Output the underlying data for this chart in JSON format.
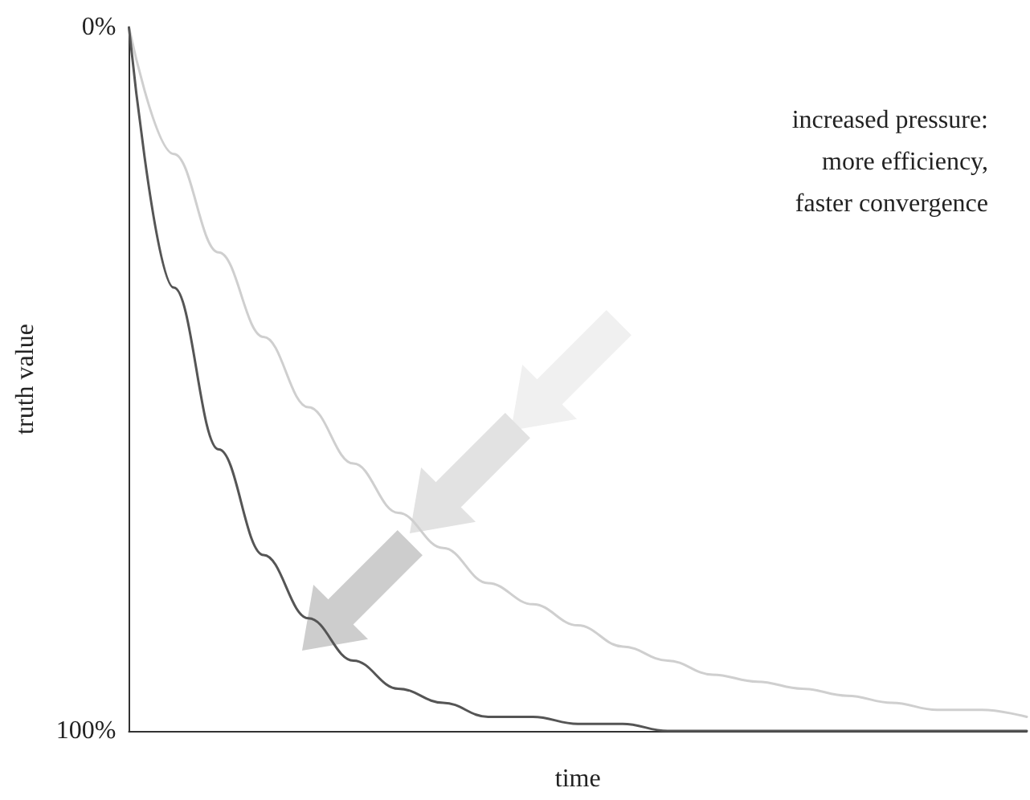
{
  "chart_data": {
    "type": "line",
    "xlabel": "time",
    "ylabel": "truth value",
    "annotations": [
      "increased pressure:\nmore efficiency,\nfaster convergence"
    ],
    "categories": [
      null,
      null,
      null,
      null,
      null,
      null,
      null,
      null,
      null,
      null,
      null,
      null,
      null,
      null,
      null,
      null,
      null,
      null,
      null,
      null,
      null
    ],
    "series": [
      {
        "color": "#cfcfcf",
        "values": [
          0,
          18,
          32,
          44,
          54,
          62,
          69,
          74,
          79,
          82,
          85,
          88,
          90,
          92,
          93,
          94,
          95,
          96,
          97,
          97,
          98
        ]
      },
      {
        "color": "#555555",
        "values": [
          0,
          37,
          60,
          75,
          84,
          90,
          94,
          96,
          98,
          98,
          99,
          99,
          100,
          100,
          100,
          100,
          100,
          100,
          100,
          100,
          100
        ]
      }
    ],
    "ylim": [
      100,
      0
    ],
    "yticks": [
      {
        "value": 0,
        "label": "0%"
      },
      {
        "value": 100,
        "label": "100%"
      }
    ],
    "tick_labels": "y",
    "grid": false,
    "marker": "none",
    "line_style": "solid"
  }
}
